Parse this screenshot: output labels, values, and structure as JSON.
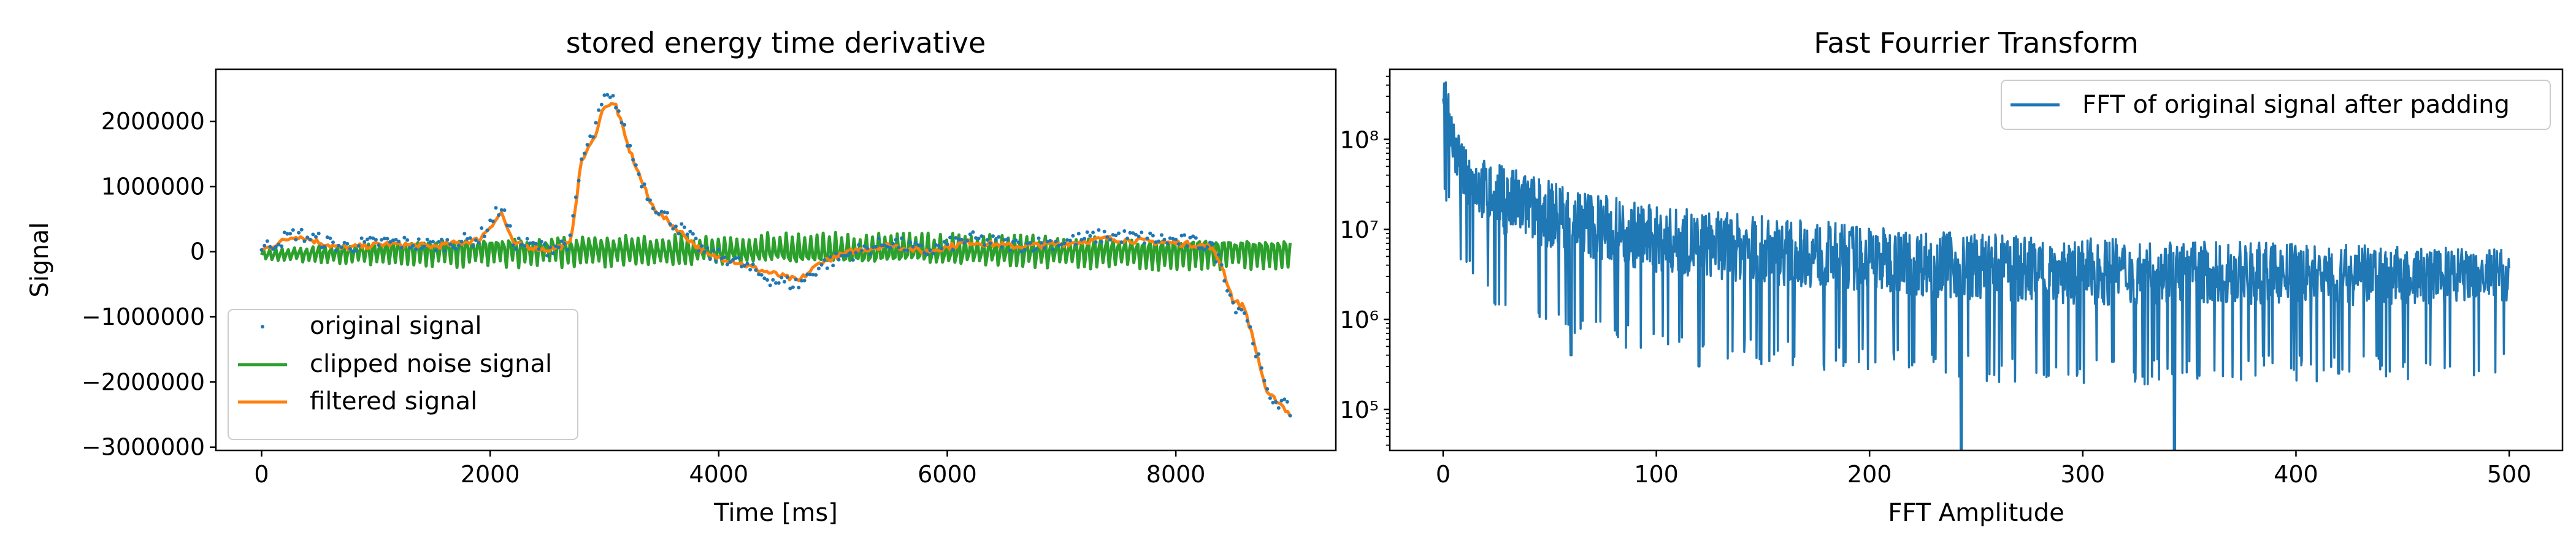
{
  "chart_data": [
    {
      "type": "line",
      "title": "stored energy time derivative",
      "xlabel": "Time [ms]",
      "ylabel": "Signal",
      "xlim": [
        -400,
        9400
      ],
      "ylim": [
        -3050000,
        2800000
      ],
      "x_ticks": [
        0,
        2000,
        4000,
        6000,
        8000
      ],
      "x_tick_labels": [
        "0",
        "2000",
        "4000",
        "6000",
        "8000"
      ],
      "y_ticks": [
        2000000,
        1000000,
        0,
        -1000000,
        -2000000,
        -3000000
      ],
      "y_tick_labels": [
        "2000000",
        "1000000",
        "0",
        "−1000000",
        "−2000000",
        "−3000000"
      ],
      "grid": false,
      "legend_position": "lower-left",
      "series": [
        {
          "name": "original signal",
          "style": "scatter",
          "color": "#1f77b4",
          "x": [
            0,
            300,
            700,
            1100,
            1500,
            1900,
            2100,
            2200,
            2500,
            2700,
            2800,
            2900,
            3000,
            3100,
            3200,
            3300,
            3400,
            3500,
            3700,
            3900,
            4100,
            4300,
            4500,
            4700,
            4900,
            5200,
            5500,
            5800,
            6200,
            6600,
            7000,
            7400,
            7800,
            8100,
            8300,
            8400,
            8500,
            8600,
            8700,
            8800,
            8900,
            9000
          ],
          "y": [
            50000,
            280000,
            80000,
            150000,
            100000,
            200000,
            700000,
            150000,
            50000,
            150000,
            1400000,
            1800000,
            2350000,
            2300000,
            1700000,
            1200000,
            800000,
            600000,
            300000,
            -50000,
            -100000,
            -300000,
            -450000,
            -500000,
            -200000,
            0,
            150000,
            0,
            200000,
            100000,
            150000,
            250000,
            200000,
            150000,
            100000,
            -200000,
            -800000,
            -900000,
            -1500000,
            -2200000,
            -2300000,
            -2450000
          ]
        },
        {
          "name": "clipped noise signal",
          "style": "oscillation",
          "color": "#2ca02c",
          "x": [
            0,
            1500,
            9000
          ],
          "y_envelope": [
            [
              50000,
              -150000
            ],
            [
              300000,
              -250000
            ],
            [
              300000,
              -300000
            ]
          ]
        },
        {
          "name": "filtered signal",
          "style": "line",
          "color": "#ff7f0e",
          "x": [
            0,
            300,
            700,
            1100,
            1500,
            1900,
            2100,
            2200,
            2500,
            2700,
            2800,
            2900,
            3000,
            3100,
            3200,
            3300,
            3400,
            3500,
            3700,
            3900,
            4100,
            4300,
            4500,
            4700,
            4900,
            5200,
            5500,
            5800,
            6200,
            6600,
            7000,
            7400,
            7800,
            8100,
            8300,
            8400,
            8500,
            8600,
            8700,
            8800,
            8900,
            9000
          ],
          "y": [
            20000,
            250000,
            50000,
            120000,
            80000,
            180000,
            600000,
            120000,
            30000,
            120000,
            1400000,
            1700000,
            2250000,
            2250000,
            1650000,
            1200000,
            750000,
            550000,
            250000,
            -60000,
            -120000,
            -250000,
            -350000,
            -450000,
            -150000,
            20000,
            100000,
            0,
            150000,
            80000,
            120000,
            200000,
            150000,
            120000,
            80000,
            -200000,
            -750000,
            -850000,
            -1500000,
            -2200000,
            -2300000,
            -2500000
          ]
        }
      ]
    },
    {
      "type": "line",
      "title": "Fast Fourrier Transform",
      "xlabel": "FFT Amplitude",
      "ylabel": "",
      "y_scale": "log",
      "xlim": [
        -25,
        525
      ],
      "ylim": [
        35000,
        600000000
      ],
      "x_ticks": [
        0,
        100,
        200,
        300,
        400,
        500
      ],
      "x_tick_labels": [
        "0",
        "100",
        "200",
        "300",
        "400",
        "500"
      ],
      "y_ticks": [
        100000,
        1000000,
        10000000,
        100000000
      ],
      "y_tick_labels": [
        "10⁵",
        "10⁶",
        "10⁷",
        "10⁸"
      ],
      "grid": false,
      "legend_position": "upper-right",
      "series": [
        {
          "name": "FFT of original signal after padding",
          "color": "#1f77b4",
          "x": [
            0,
            2,
            5,
            10,
            20,
            30,
            50,
            75,
            100,
            150,
            200,
            250,
            300,
            350,
            400,
            450,
            500
          ],
          "y_upper": [
            600000000,
            400000000,
            150000000,
            80000000,
            60000000,
            50000000,
            35000000,
            25000000,
            18000000,
            14000000,
            11000000,
            9000000,
            8000000,
            7500000,
            7000000,
            6500000,
            6000000
          ],
          "y_lower": [
            50000000,
            30000000,
            15000000,
            6000000,
            3000000,
            2000000,
            1500000,
            1000000,
            800000,
            600000,
            500000,
            400000,
            350000,
            400000,
            400000,
            400000,
            500000
          ],
          "dips": [
            [
              60,
              400000
            ],
            [
              120,
              300000
            ],
            [
              243,
              35000
            ],
            [
              343,
              35000
            ],
            [
              420,
              250000
            ]
          ]
        }
      ]
    }
  ]
}
